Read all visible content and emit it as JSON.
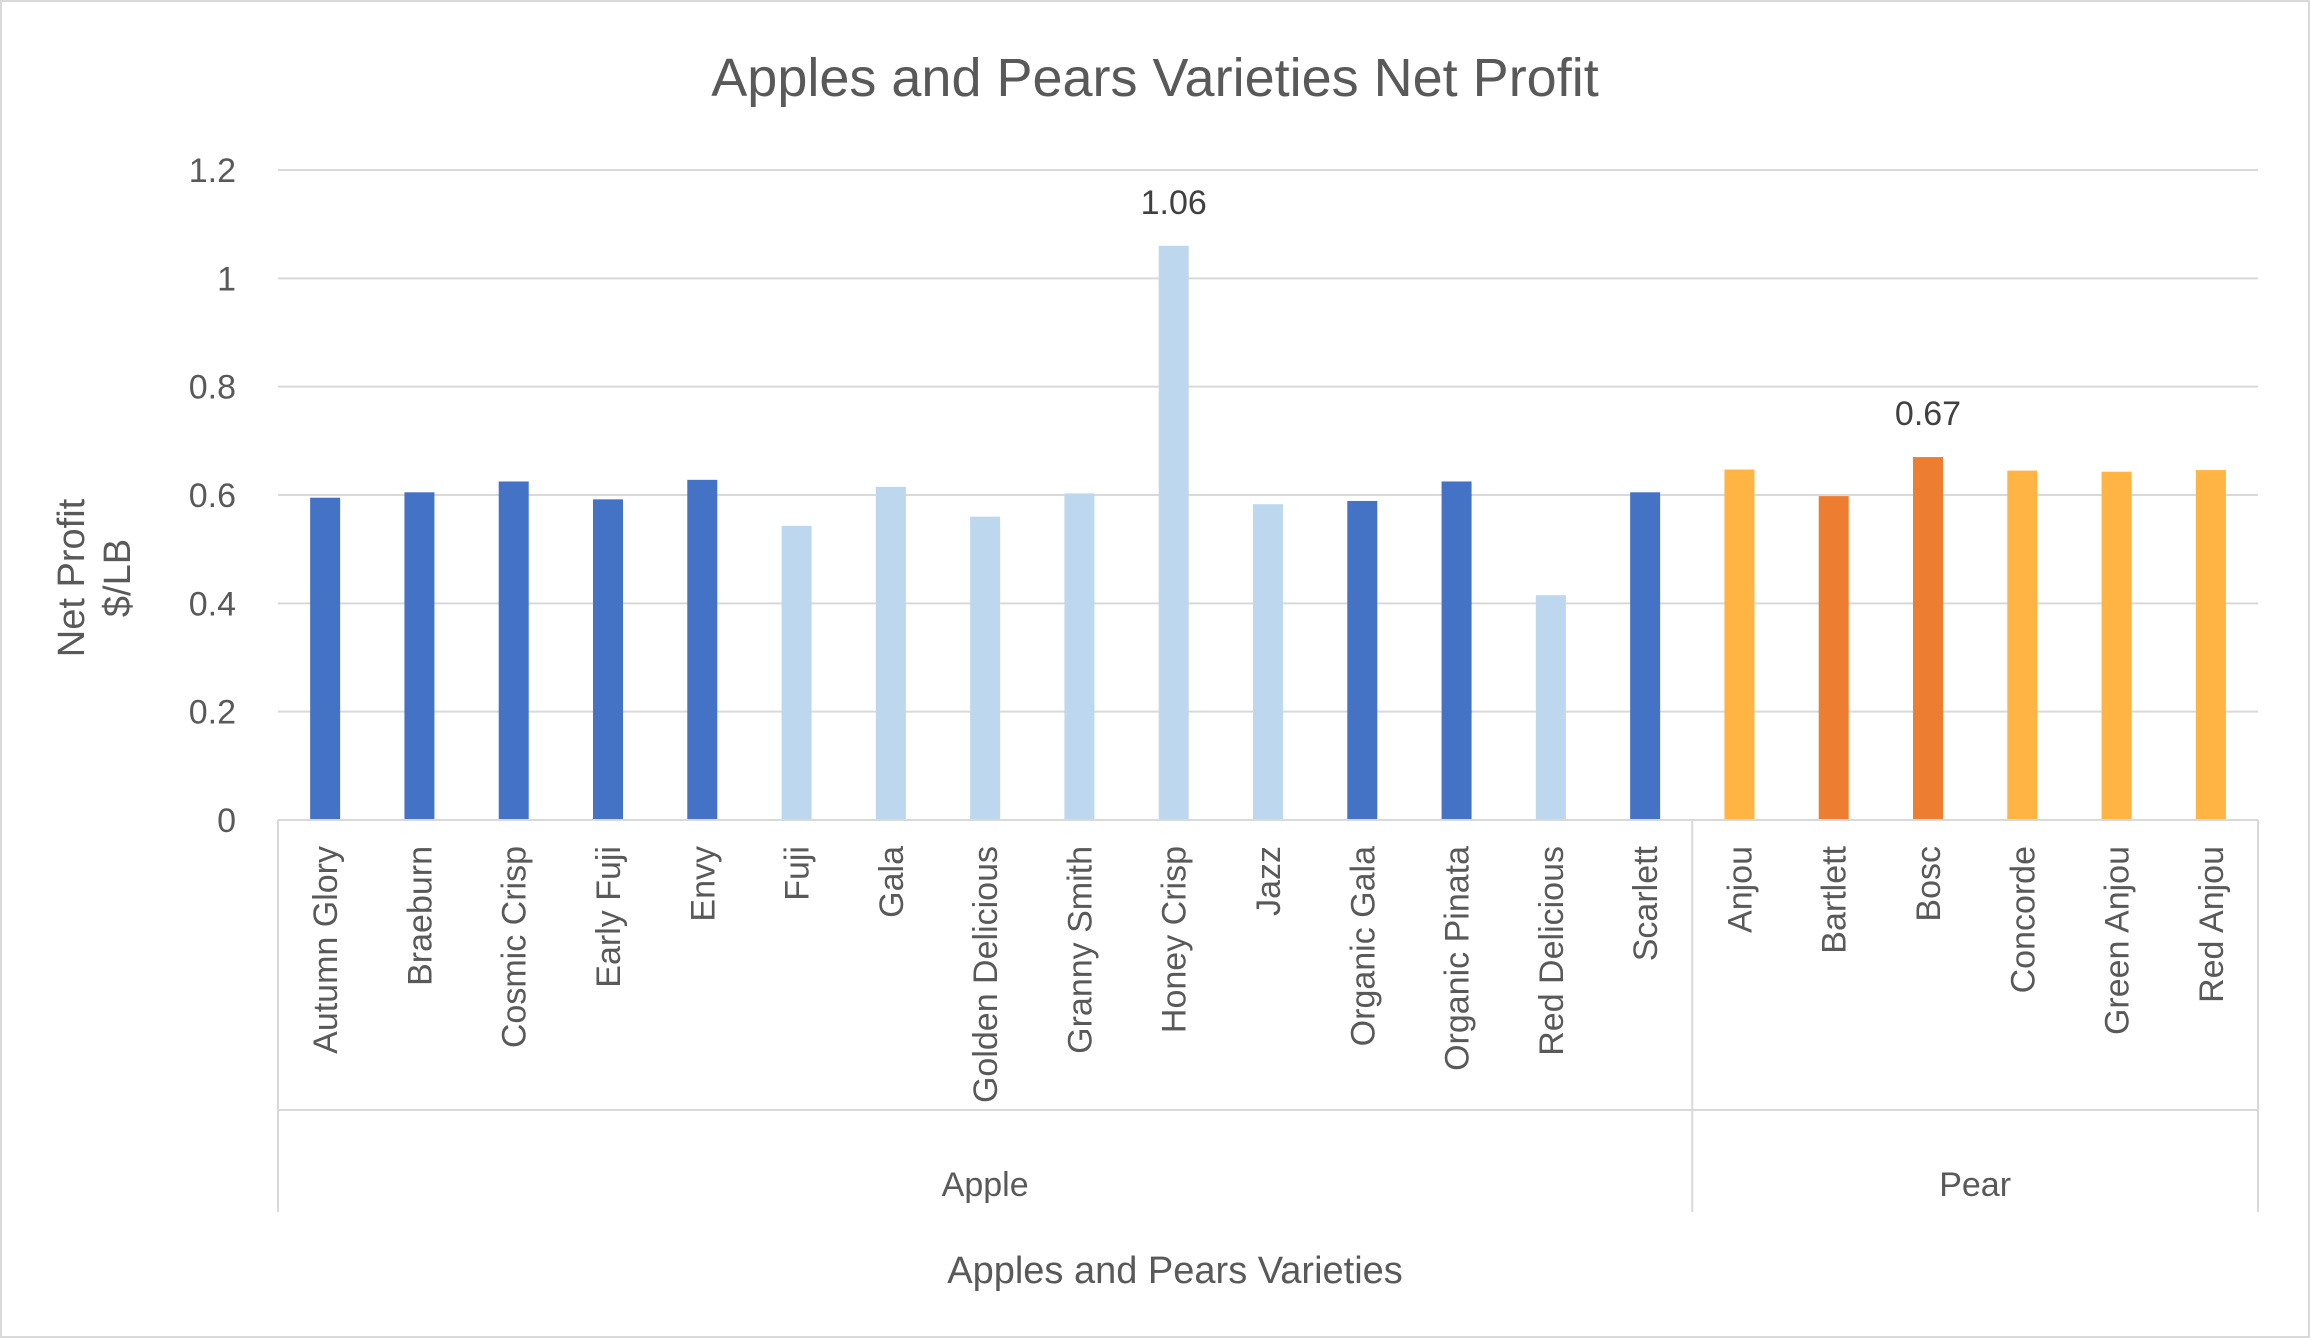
{
  "chart_data": {
    "type": "bar",
    "title": "Apples and Pears Varieties Net Profit",
    "xlabel": "Apples and Pears Varieties",
    "ylabel_lines": [
      "Net Profit",
      "$/LB"
    ],
    "ylim": [
      0,
      1.2
    ],
    "yticks": [
      0,
      0.2,
      0.4,
      0.6,
      0.8,
      1,
      1.2
    ],
    "ytick_labels": [
      "0",
      "0.2",
      "0.4",
      "0.6",
      "0.8",
      "1",
      "1.2"
    ],
    "grid": true,
    "legend": "none",
    "groups": [
      {
        "name": "Apple",
        "start": 0,
        "count": 15
      },
      {
        "name": "Pear",
        "start": 15,
        "count": 6
      }
    ],
    "categories": [
      "Autumn Glory",
      "Braeburn",
      "Cosmic Crisp",
      "Early Fuji",
      "Envy",
      "Fuji",
      "Gala",
      "Golden Delicious",
      "Granny Smith",
      "Honey Crisp",
      "Jazz",
      "Organic Gala",
      "Organic Pinata",
      "Red Delicious",
      "Scarlett",
      "Anjou",
      "Bartlett",
      "Bosc",
      "Concorde",
      "Green Anjou",
      "Red Anjou"
    ],
    "values": [
      0.595,
      0.605,
      0.625,
      0.592,
      0.628,
      0.543,
      0.615,
      0.56,
      0.603,
      1.06,
      0.583,
      0.589,
      0.625,
      0.415,
      0.605,
      0.647,
      0.598,
      0.67,
      0.645,
      0.643,
      0.646
    ],
    "colors": [
      "#4472c4",
      "#4472c4",
      "#4472c4",
      "#4472c4",
      "#4472c4",
      "#bdd7ee",
      "#bdd7ee",
      "#bdd7ee",
      "#bdd7ee",
      "#bdd7ee",
      "#bdd7ee",
      "#4472c4",
      "#4472c4",
      "#bdd7ee",
      "#4472c4",
      "#ffb444",
      "#ed7d31",
      "#ed7d31",
      "#ffb444",
      "#ffb444",
      "#ffb444"
    ],
    "data_labels": [
      {
        "index": 9,
        "text": "1.06"
      },
      {
        "index": 17,
        "text": "0.67"
      }
    ]
  }
}
